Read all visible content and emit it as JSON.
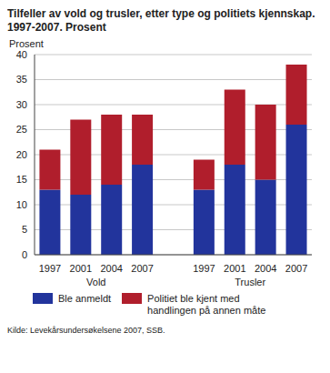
{
  "chart_data": {
    "type": "bar",
    "title": "Tilfeller av vold og trusler, etter type og politiets kjennskap. 1997-2007. Prosent",
    "y_label": "Prosent",
    "categories": [
      "1997",
      "2001",
      "2004",
      "2007",
      null,
      "1997",
      "2001",
      "2004",
      "2007"
    ],
    "category_groups": [
      "Vold",
      "Vold",
      "Vold",
      "Vold",
      null,
      "Trusler",
      "Trusler",
      "Trusler",
      "Trusler"
    ],
    "series": [
      {
        "name": "Ble anmeldt",
        "color": "#22349c",
        "values": [
          13,
          12,
          14,
          18,
          null,
          13,
          18,
          15,
          26
        ]
      },
      {
        "name": "Politiet ble kjent med handlingen på annen måte",
        "color": "#b01e2c",
        "values": [
          8,
          15,
          14,
          10,
          null,
          6,
          15,
          15,
          12
        ]
      }
    ],
    "stacked": true,
    "ylim": [
      0,
      40
    ],
    "yticks": [
      0,
      5,
      10,
      15,
      20,
      25,
      30,
      35,
      40
    ],
    "grid": true,
    "legend": "bottom",
    "source": "Kilde: Levekårsundersøkelsene 2007, SSB."
  }
}
